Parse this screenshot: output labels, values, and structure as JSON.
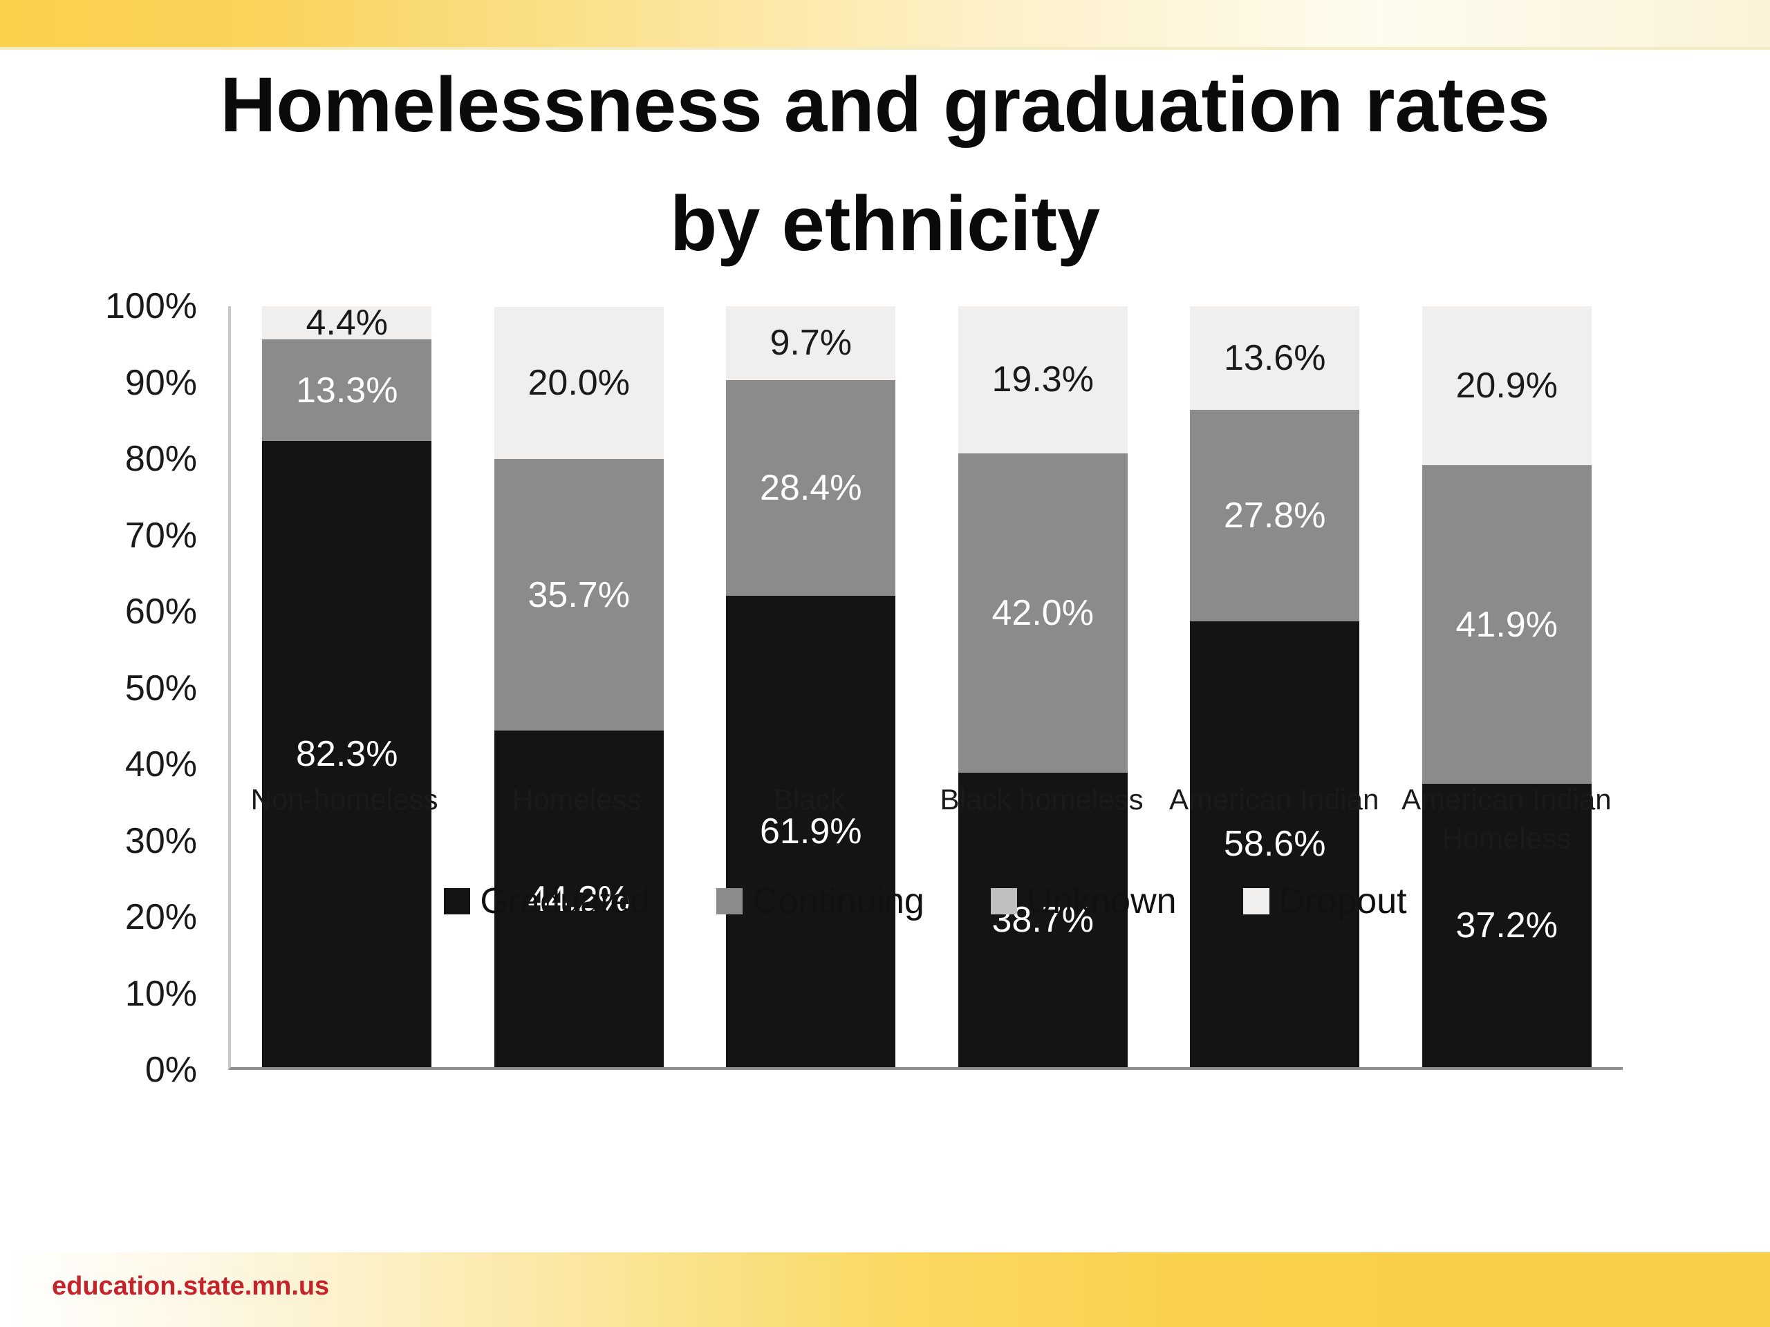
{
  "slide": {
    "title_line1": "Homelessness and graduation rates",
    "title_line2": "by ethnicity",
    "footer_url": "education.state.mn.us"
  },
  "colors": {
    "accent_gold": "#F9CE47",
    "footer_text_red": "#C4232B",
    "axis_line": "#8E8E8E",
    "title_text": "#0A0A0A"
  },
  "chart_data": {
    "type": "bar",
    "stacked": true,
    "grid": false,
    "legend_position": "bottom",
    "categories": [
      "Non-homeless",
      "Homeless",
      "Black",
      "Black homeless",
      "American Indian",
      "American Indian Homeless"
    ],
    "series": [
      {
        "name": "Graduated",
        "color": "#141414",
        "label_color": "#FFFFFF",
        "values": [
          82.3,
          44.2,
          61.9,
          38.7,
          58.6,
          37.2
        ],
        "labels": [
          "82.3%",
          "44.2%",
          "61.9%",
          "38.7%",
          "58.6%",
          "37.2%"
        ]
      },
      {
        "name": "Continuing",
        "color": "#8B8B8B",
        "label_color": "#FFFFFF",
        "values": [
          13.3,
          35.7,
          28.4,
          42.0,
          27.8,
          41.9
        ],
        "labels": [
          "13.3%",
          "35.7%",
          "28.4%",
          "42.0%",
          "27.8%",
          "41.9%"
        ]
      },
      {
        "name": "Unknown",
        "color": "#C0C0C0",
        "label_color": "#1A1A1A",
        "values": [
          0,
          0,
          0,
          0,
          0,
          0
        ],
        "labels": [
          "",
          "",
          "",
          "",
          "",
          ""
        ]
      },
      {
        "name": "Dropout",
        "color": "#F0EFEE",
        "label_color": "#1A1A1A",
        "values": [
          4.4,
          20.0,
          9.7,
          19.3,
          13.6,
          20.9
        ],
        "labels": [
          "4.4%",
          "20.0%",
          "9.7%",
          "19.3%",
          "13.6%",
          "20.9%"
        ]
      }
    ],
    "y_ticks": [
      "0%",
      "10%",
      "20%",
      "30%",
      "40%",
      "50%",
      "60%",
      "70%",
      "80%",
      "90%",
      "100%"
    ],
    "ylim": [
      0,
      100
    ],
    "value_suffix": "%"
  }
}
